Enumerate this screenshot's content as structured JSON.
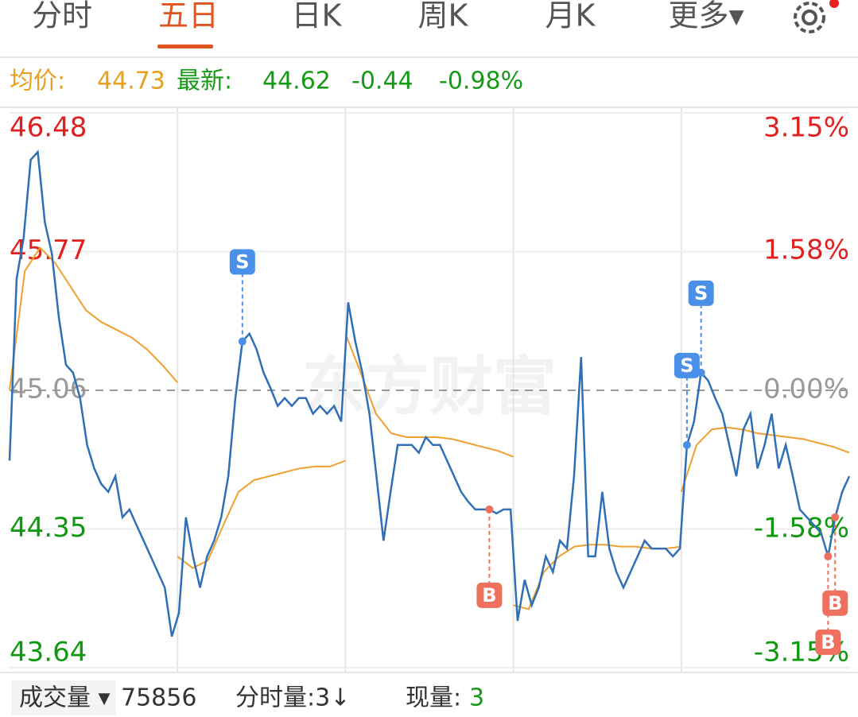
{
  "tabs": [
    "分时",
    "五日",
    "日K",
    "周K",
    "月K",
    "更多▾"
  ],
  "active_tab": 1,
  "info": {
    "avg_label": "均价:",
    "avg_value": "44.73",
    "last_label": "最新:",
    "last_value": "44.62",
    "change": "-0.44",
    "change_pct": "-0.98%"
  },
  "watermark": "东方财富",
  "chart_data": {
    "type": "line",
    "ylim": [
      43.64,
      46.48
    ],
    "yticks": [
      43.64,
      44.35,
      45.06,
      45.77,
      46.48
    ],
    "y2lim": [
      -3.15,
      3.15
    ],
    "y2ticks": [
      {
        "value": -3.15,
        "label": "-3.15%"
      },
      {
        "value": -1.58,
        "label": "-1.58%"
      },
      {
        "value": 0,
        "label": "0.00%"
      },
      {
        "value": 1.58,
        "label": "1.58%"
      },
      {
        "value": 3.15,
        "label": "3.15%"
      }
    ],
    "baseline": 45.06,
    "days": 5,
    "price_color": "#2f6fb8",
    "avg_color": "#f0a030",
    "price": [
      44.7,
      45.63,
      45.84,
      46.24,
      46.28,
      45.92,
      45.76,
      45.43,
      45.19,
      45.15,
      45.02,
      44.78,
      44.66,
      44.58,
      44.54,
      44.62,
      44.41,
      44.45,
      44.37,
      44.29,
      44.21,
      44.13,
      44.05,
      43.8,
      43.92,
      44.41,
      44.21,
      44.05,
      44.21,
      44.29,
      44.41,
      44.62,
      45.02,
      45.31,
      45.35,
      45.27,
      45.15,
      45.07,
      44.98,
      45.02,
      44.98,
      45.02,
      45.02,
      44.94,
      44.98,
      44.94,
      44.98,
      44.9,
      45.51,
      45.31,
      45.15,
      44.94,
      44.62,
      44.29,
      44.54,
      44.78,
      44.78,
      44.78,
      44.74,
      44.82,
      44.78,
      44.78,
      44.7,
      44.62,
      44.54,
      44.49,
      44.45,
      44.45,
      44.45,
      44.43,
      44.45,
      44.45,
      43.88,
      44.09,
      43.96,
      44.05,
      44.21,
      44.13,
      44.29,
      44.25,
      44.62,
      45.23,
      44.21,
      44.21,
      44.54,
      44.25,
      44.13,
      44.05,
      44.13,
      44.21,
      44.29,
      44.25,
      44.25,
      44.25,
      44.21,
      44.25,
      44.78,
      44.9,
      45.15,
      45.11,
      45.02,
      44.94,
      44.78,
      44.62,
      44.86,
      44.94,
      44.66,
      44.78,
      44.94,
      44.66,
      44.78,
      44.62,
      44.45,
      44.41,
      44.37,
      44.33,
      44.21,
      44.41,
      44.54,
      44.62
    ],
    "avg": [
      [
        45.06,
        45.67,
        45.79,
        45.71,
        45.59,
        45.47,
        45.41,
        45.37,
        45.33,
        45.27,
        45.19,
        45.1
      ],
      [
        44.21,
        44.15,
        44.19,
        44.37,
        44.54,
        44.6,
        44.62,
        44.64,
        44.66,
        44.67,
        44.67,
        44.7
      ],
      [
        45.35,
        45.15,
        44.94,
        44.84,
        44.82,
        44.82,
        44.82,
        44.81,
        44.79,
        44.77,
        44.75,
        44.72
      ],
      [
        43.96,
        43.94,
        44.13,
        44.21,
        44.26,
        44.27,
        44.27,
        44.26,
        44.26,
        44.25,
        44.25,
        44.26
      ],
      [
        44.54,
        44.78,
        44.86,
        44.87,
        44.86,
        44.84,
        44.83,
        44.82,
        44.81,
        44.79,
        44.77,
        44.74
      ]
    ],
    "markers": [
      {
        "label": "S",
        "point": 33,
        "side": "up",
        "color": "#4a90e8"
      },
      {
        "label": "B",
        "point": 68,
        "side": "down",
        "color": "#f07060"
      },
      {
        "label": "S",
        "point": 96,
        "side": "up",
        "color": "#4a90e8"
      },
      {
        "label": "S",
        "point": 98,
        "side": "up",
        "color": "#4a90e8"
      },
      {
        "label": "B",
        "point": 116,
        "side": "down",
        "color": "#f07060"
      },
      {
        "label": "B",
        "point": 117,
        "side": "down",
        "color": "#f07060"
      }
    ]
  },
  "footer": {
    "volume_label": "成交量 ▾",
    "volume": "75856",
    "tick_volume": "分时量:3↓",
    "now_label": "现量:",
    "now_value": "3"
  }
}
